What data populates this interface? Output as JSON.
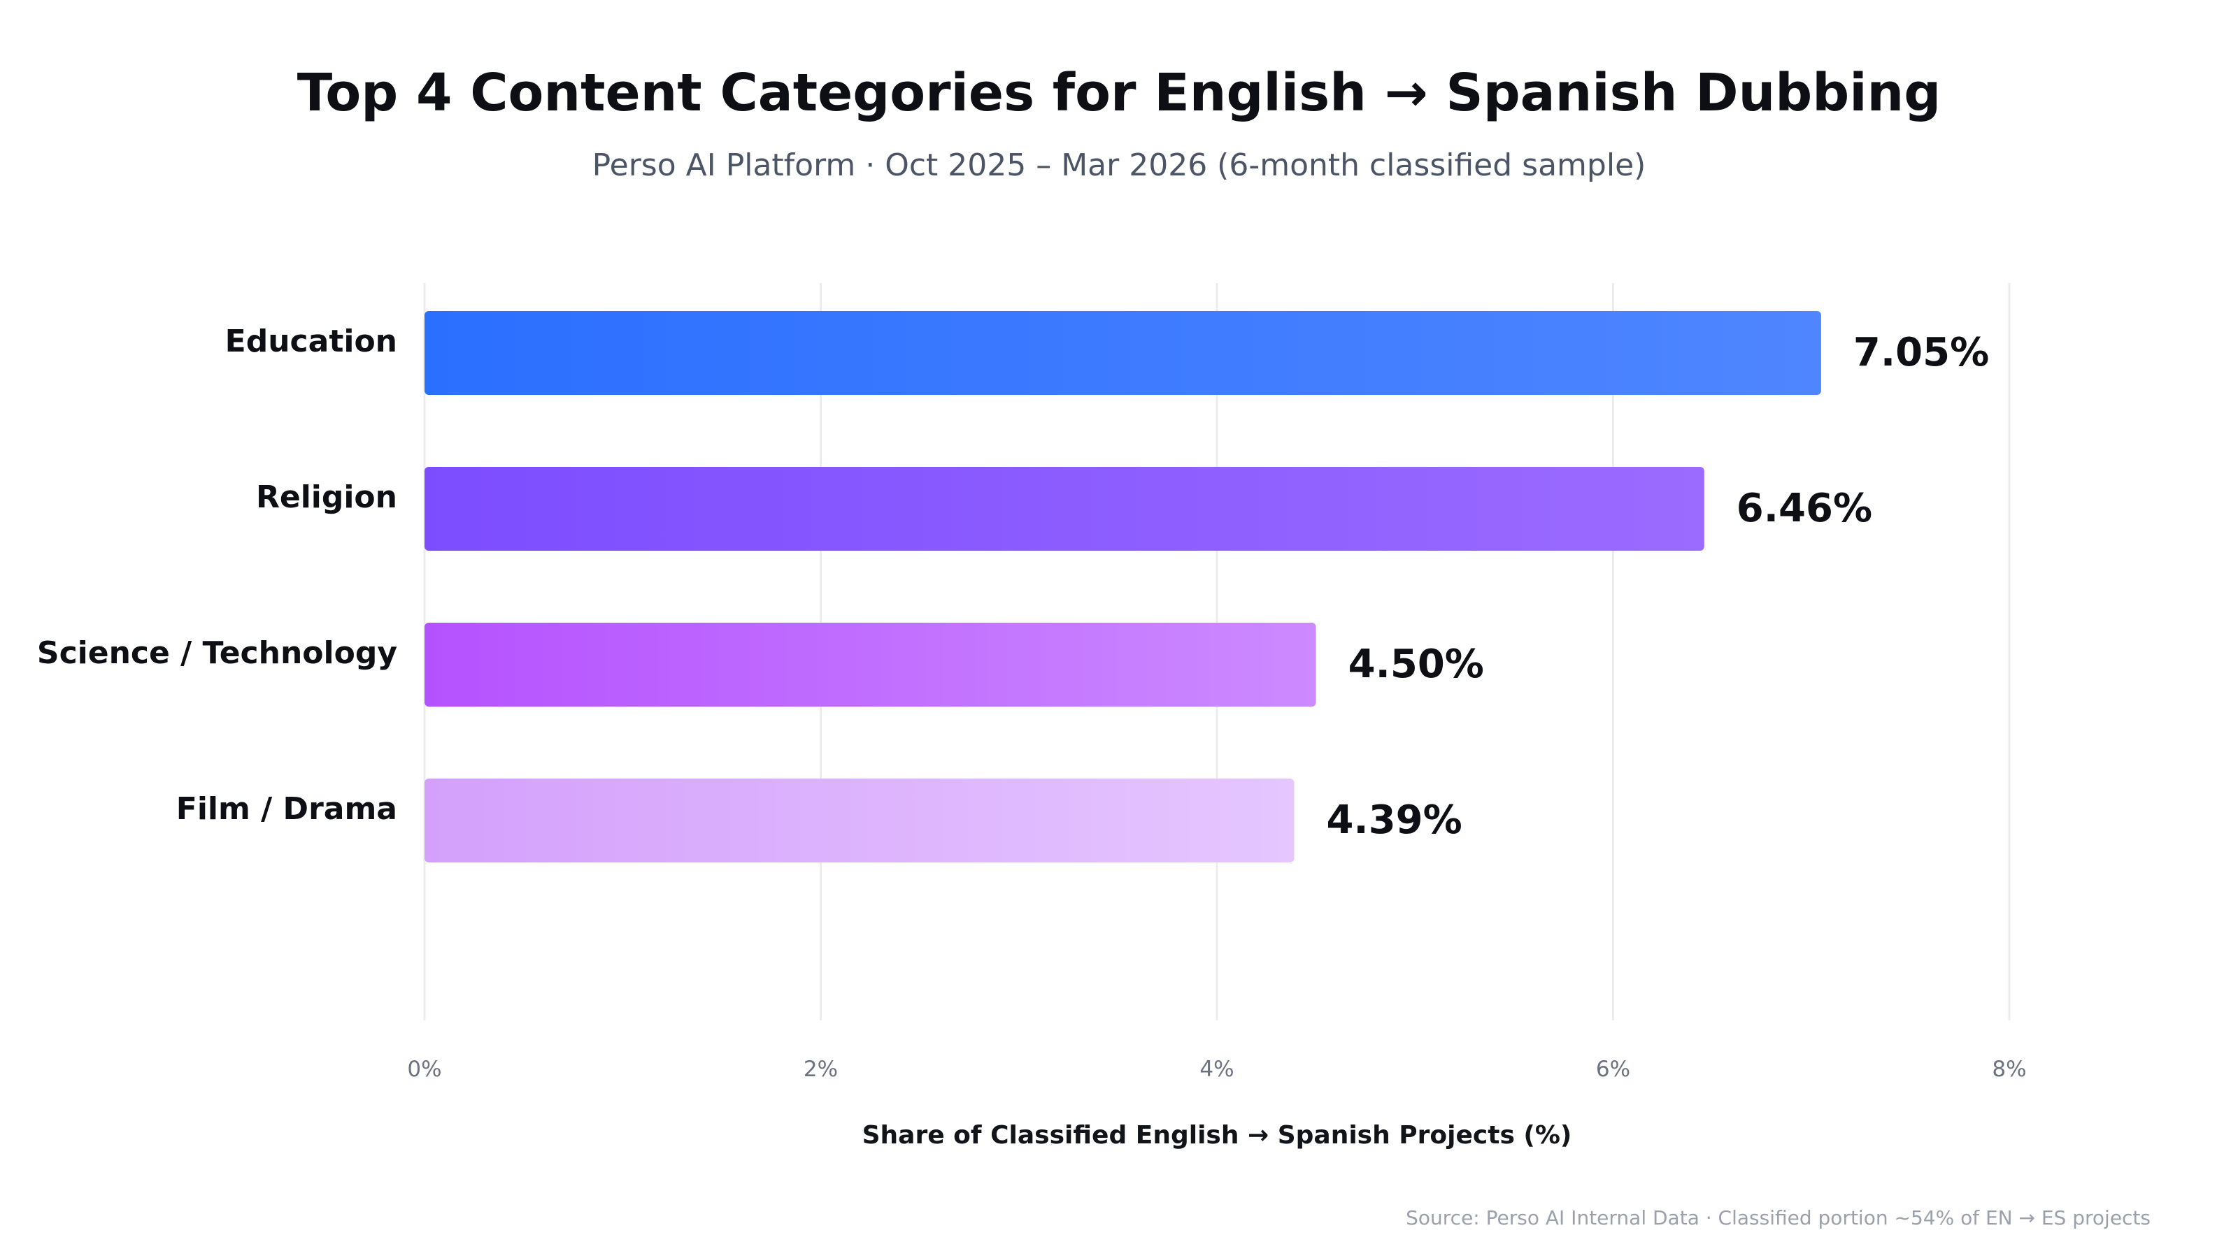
{
  "chart_data": {
    "type": "bar",
    "orientation": "horizontal",
    "title": "Top 4 Content Categories for English → Spanish Dubbing",
    "subtitle": "Perso AI Platform · Oct 2025 – Mar 2026 (6-month classified sample)",
    "categories": [
      "Education",
      "Religion",
      "Science / Technology",
      "Film / Drama"
    ],
    "values": [
      7.05,
      6.46,
      4.5,
      4.39
    ],
    "value_labels": [
      "7.05%",
      "6.46%",
      "4.50%",
      "4.39%"
    ],
    "xlabel": "Share of Classified English → Spanish Projects (%)",
    "ylabel": "",
    "xlim": [
      0,
      8
    ],
    "xticks": [
      0,
      2,
      4,
      6,
      8
    ],
    "xtick_labels": [
      "0%",
      "2%",
      "4%",
      "6%",
      "8%"
    ],
    "grid": "vertical",
    "legend": "none",
    "colors": [
      [
        "#2b6fff",
        "#4f86ff"
      ],
      [
        "#7c4dff",
        "#9b6bff"
      ],
      [
        "#b552ff",
        "#cc8aff"
      ],
      [
        "#d4a0fb",
        "#e5c6ff"
      ]
    ],
    "source": "Source: Perso AI Internal Data · Classified portion ~54% of EN → ES projects"
  }
}
